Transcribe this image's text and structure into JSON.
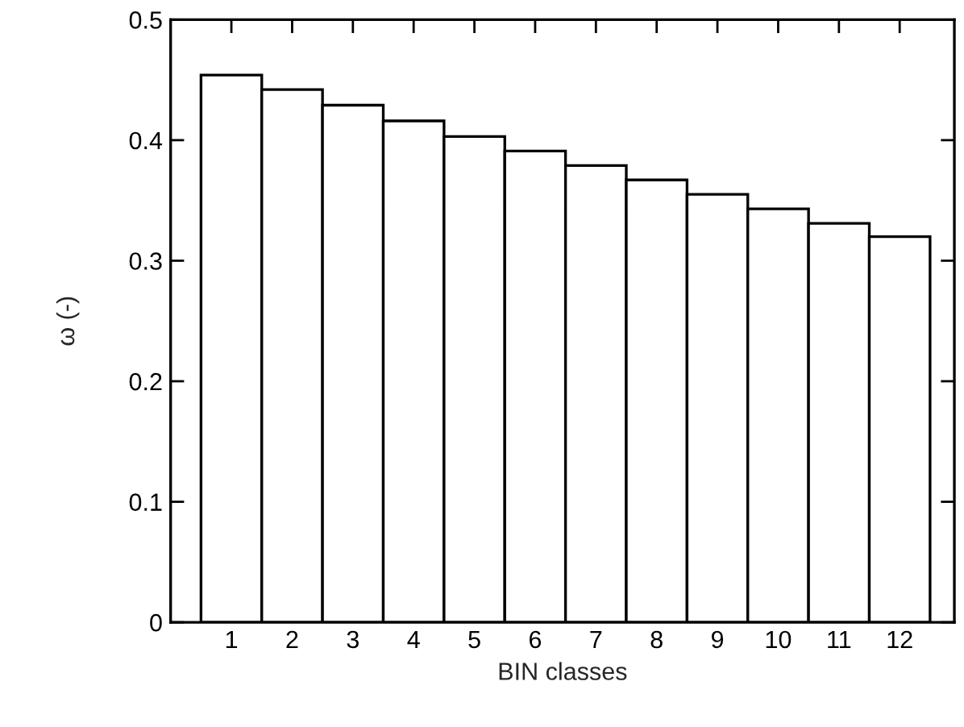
{
  "chart_data": {
    "type": "bar",
    "xlabel": "BIN classes",
    "ylabel": "ω (-)",
    "categories": [
      "1",
      "2",
      "3",
      "4",
      "5",
      "6",
      "7",
      "8",
      "9",
      "10",
      "11",
      "12"
    ],
    "values": [
      0.454,
      0.442,
      0.429,
      0.416,
      0.403,
      0.391,
      0.379,
      0.367,
      0.355,
      0.343,
      0.331,
      0.32
    ],
    "color": "#ffffff",
    "ylim": [
      0,
      0.5
    ],
    "yticks": [
      0,
      0.1,
      0.2,
      0.3,
      0.4,
      0.5
    ],
    "grid": false,
    "legend": false
  }
}
